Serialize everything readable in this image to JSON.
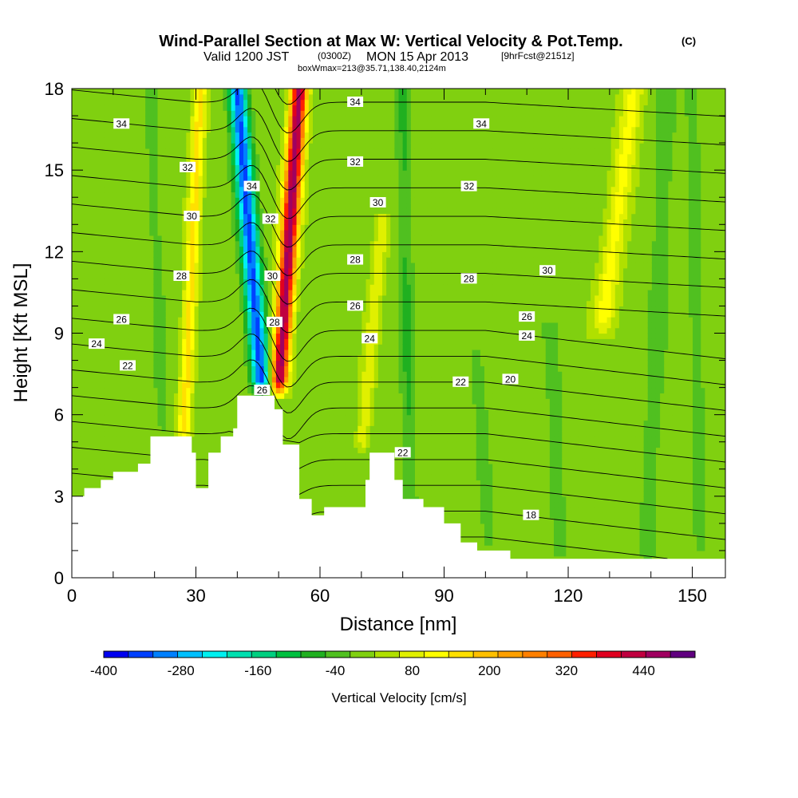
{
  "chart_data": {
    "type": "heatmap",
    "title": "Wind-Parallel Section at Max W: Vertical Velocity & Pot.Temp.",
    "title_mark": "(C)",
    "subtitle_main": "Valid 1200 JST",
    "subtitle_utc": "(0300Z)",
    "subtitle_date": "MON 15 Apr 2013",
    "subtitle_fcst": "[9hrFcst@2151z]",
    "subtitle2": "boxWmax=213@35.71,138.40,2124m",
    "xlabel": "Distance [nm]",
    "ylabel": "Height [Kft MSL]",
    "xlim": [
      0,
      158
    ],
    "ylim": [
      0,
      18
    ],
    "x_ticks": [
      0,
      30,
      60,
      90,
      120,
      150
    ],
    "x_tick_labels": [
      "0",
      "30",
      "60",
      "90",
      "120",
      "150"
    ],
    "y_ticks": [
      0,
      3,
      6,
      9,
      12,
      15,
      18
    ],
    "y_tick_labels": [
      "0",
      "3",
      "6",
      "9",
      "12",
      "15",
      "18"
    ],
    "colorbar": {
      "label": "Vertical Velocity [cm/s]",
      "min": -400,
      "max": 520,
      "step": 40,
      "tick_values": [
        -400,
        -280,
        -160,
        -40,
        80,
        200,
        320,
        440
      ],
      "tick_labels": [
        "-400",
        "-280",
        "-160",
        "-40",
        "80",
        "200",
        "320",
        "440"
      ],
      "colors": [
        "#0000f0",
        "#0040ff",
        "#0080ff",
        "#00c0ff",
        "#00f0f0",
        "#00e0b0",
        "#00d080",
        "#00c040",
        "#20b020",
        "#50c020",
        "#80d010",
        "#b0e000",
        "#e0f000",
        "#ffff00",
        "#ffe000",
        "#ffc000",
        "#ffa000",
        "#ff8000",
        "#ff6000",
        "#ff2000",
        "#e00020",
        "#c00040",
        "#a00060",
        "#600080"
      ]
    },
    "terrain_kft": [
      [
        0,
        3
      ],
      [
        3,
        3.3
      ],
      [
        7,
        3.6
      ],
      [
        10,
        3.9
      ],
      [
        16,
        4.2
      ],
      [
        19,
        5.2
      ],
      [
        26,
        5.2
      ],
      [
        29,
        4.6
      ],
      [
        30,
        3.3
      ],
      [
        33,
        4.6
      ],
      [
        36,
        5.2
      ],
      [
        39,
        5.5
      ],
      [
        40,
        6.7
      ],
      [
        48,
        6.7
      ],
      [
        49,
        6.2
      ],
      [
        51,
        4.9
      ],
      [
        55,
        2.9
      ],
      [
        58,
        2.3
      ],
      [
        61,
        2.6
      ],
      [
        68,
        2.6
      ],
      [
        71,
        3.6
      ],
      [
        72,
        4.6
      ],
      [
        77,
        4.6
      ],
      [
        78,
        3.6
      ],
      [
        80,
        2.9
      ],
      [
        85,
        2.6
      ],
      [
        90,
        2.0
      ],
      [
        94,
        1.3
      ],
      [
        98,
        1.0
      ],
      [
        103,
        1.0
      ],
      [
        106,
        0.7
      ],
      [
        158,
        0.7
      ]
    ],
    "w_features": [
      {
        "x0": 46,
        "x1": 40,
        "z0": 6.8,
        "z1": 18,
        "sigma": 2.2,
        "w": -360
      },
      {
        "x0": 50,
        "x1": 55,
        "z0": 6.8,
        "z1": 18,
        "sigma": 2.0,
        "w": 480
      },
      {
        "x0": 27,
        "x1": 31,
        "z0": 5,
        "z1": 18,
        "sigma": 1.6,
        "w": 150
      },
      {
        "x0": 70,
        "x1": 75,
        "z0": 4.6,
        "z1": 13,
        "sigma": 1.6,
        "w": 90
      },
      {
        "x0": 128,
        "x1": 136,
        "z0": 9,
        "z1": 18,
        "sigma": 2.6,
        "w": 110
      },
      {
        "x0": 82,
        "x1": 80,
        "z0": 1,
        "z1": 18,
        "sigma": 1.8,
        "w": -70
      },
      {
        "x0": 139,
        "x1": 144,
        "z0": 0.7,
        "z1": 18,
        "sigma": 2.2,
        "w": -55
      },
      {
        "x0": 118,
        "x1": 116,
        "z0": 0.7,
        "z1": 9,
        "sigma": 1.8,
        "w": -55
      },
      {
        "x0": 101,
        "x1": 98,
        "z0": 1,
        "z1": 8,
        "sigma": 1.6,
        "w": -50
      },
      {
        "x0": 22,
        "x1": 19,
        "z0": 5.2,
        "z1": 18,
        "sigma": 1.5,
        "w": -50
      },
      {
        "x0": 152,
        "x1": 150,
        "z0": 0.7,
        "z1": 18,
        "sigma": 2.0,
        "w": -40
      }
    ],
    "theta_levels": [
      18,
      19,
      20,
      21,
      22,
      23,
      24,
      25,
      26,
      27,
      28,
      29,
      30,
      31,
      32,
      33,
      34,
      35
    ],
    "contour_labels": [
      {
        "x": 12,
        "z": 16.7,
        "value": "34"
      },
      {
        "x": 28,
        "z": 15.1,
        "value": "32"
      },
      {
        "x": 29,
        "z": 13.3,
        "value": "30"
      },
      {
        "x": 26.5,
        "z": 11.1,
        "value": "28"
      },
      {
        "x": 12,
        "z": 9.5,
        "value": "26"
      },
      {
        "x": 6,
        "z": 8.6,
        "value": "24"
      },
      {
        "x": 13.5,
        "z": 7.8,
        "value": "22"
      },
      {
        "x": 43.5,
        "z": 14.4,
        "value": "34"
      },
      {
        "x": 48,
        "z": 13.2,
        "value": "32"
      },
      {
        "x": 48.5,
        "z": 11.1,
        "value": "30"
      },
      {
        "x": 49,
        "z": 9.4,
        "value": "28"
      },
      {
        "x": 46,
        "z": 6.9,
        "value": "26"
      },
      {
        "x": 68.5,
        "z": 17.5,
        "value": "34"
      },
      {
        "x": 68.5,
        "z": 15.3,
        "value": "32"
      },
      {
        "x": 74,
        "z": 13.8,
        "value": "30"
      },
      {
        "x": 68.5,
        "z": 11.7,
        "value": "28"
      },
      {
        "x": 68.5,
        "z": 10.0,
        "value": "26"
      },
      {
        "x": 72,
        "z": 8.8,
        "value": "24"
      },
      {
        "x": 99,
        "z": 16.7,
        "value": "34"
      },
      {
        "x": 96,
        "z": 14.4,
        "value": "32"
      },
      {
        "x": 115,
        "z": 11.3,
        "value": "30"
      },
      {
        "x": 96,
        "z": 11.0,
        "value": "28"
      },
      {
        "x": 110,
        "z": 9.6,
        "value": "26"
      },
      {
        "x": 110,
        "z": 8.9,
        "value": "24"
      },
      {
        "x": 94,
        "z": 7.2,
        "value": "22"
      },
      {
        "x": 106,
        "z": 7.3,
        "value": "20"
      },
      {
        "x": 80,
        "z": 4.6,
        "value": "22"
      },
      {
        "x": 111,
        "z": 2.3,
        "value": "18"
      }
    ]
  }
}
